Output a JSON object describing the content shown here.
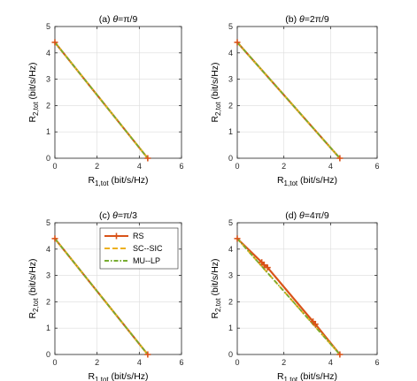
{
  "chart_data": [
    {
      "type": "line",
      "title_prefix": "(a) ",
      "title_theta": "θ",
      "title_suffix": "=π/9",
      "xlabel": {
        "main": "R",
        "sub": "1,tot",
        "rest": " (bit/s/Hz)"
      },
      "ylabel": {
        "main": "R",
        "sub": "2,tot",
        "rest": " (bit/s/Hz)"
      },
      "xlim": [
        0,
        6
      ],
      "ylim": [
        0,
        5
      ],
      "xticks": [
        "0",
        "2",
        "4",
        "6"
      ],
      "yticks": [
        "0",
        "1",
        "2",
        "3",
        "4",
        "5"
      ],
      "grid": true,
      "series": [
        {
          "name": "RS",
          "color": "#d95319",
          "style": "solid",
          "marker": "plus",
          "x": [
            0,
            4.4
          ],
          "y": [
            4.4,
            0
          ]
        },
        {
          "name": "SC--SIC",
          "color": "#edb120",
          "style": "dashed",
          "x": [
            0,
            4.4
          ],
          "y": [
            4.4,
            0
          ]
        },
        {
          "name": "MU--LP",
          "color": "#77ac30",
          "style": "dashdot",
          "x": [
            0,
            4.4
          ],
          "y": [
            4.4,
            0
          ]
        }
      ]
    },
    {
      "type": "line",
      "title_prefix": "(b) ",
      "title_theta": "θ",
      "title_suffix": "=2π/9",
      "xlabel": {
        "main": "R",
        "sub": "1,tot",
        "rest": " (bit/s/Hz)"
      },
      "ylabel": {
        "main": "R",
        "sub": "2,tot",
        "rest": " (bit/s/Hz)"
      },
      "xlim": [
        0,
        6
      ],
      "ylim": [
        0,
        5
      ],
      "xticks": [
        "0",
        "2",
        "4",
        "6"
      ],
      "yticks": [
        "0",
        "1",
        "2",
        "3",
        "4",
        "5"
      ],
      "grid": true,
      "series": [
        {
          "name": "RS",
          "color": "#d95319",
          "style": "solid",
          "marker": "plus",
          "x": [
            0,
            4.4
          ],
          "y": [
            4.4,
            0
          ]
        },
        {
          "name": "SC--SIC",
          "color": "#edb120",
          "style": "dashed",
          "x": [
            0,
            4.4
          ],
          "y": [
            4.4,
            0
          ]
        },
        {
          "name": "MU--LP",
          "color": "#77ac30",
          "style": "dashdot",
          "x": [
            0,
            4.4
          ],
          "y": [
            4.4,
            0
          ]
        }
      ]
    },
    {
      "type": "line",
      "title_prefix": "(c) ",
      "title_theta": "θ",
      "title_suffix": "=π/3",
      "xlabel": {
        "main": "R",
        "sub": "1,tot",
        "rest": " (bit/s/Hz)"
      },
      "ylabel": {
        "main": "R",
        "sub": "2,tot",
        "rest": " (bit/s/Hz)"
      },
      "xlim": [
        0,
        6
      ],
      "ylim": [
        0,
        5
      ],
      "xticks": [
        "0",
        "2",
        "4",
        "6"
      ],
      "yticks": [
        "0",
        "1",
        "2",
        "3",
        "4",
        "5"
      ],
      "grid": true,
      "legend": "top-right",
      "series": [
        {
          "name": "RS",
          "color": "#d95319",
          "style": "solid",
          "marker": "plus",
          "x": [
            0,
            4.4
          ],
          "y": [
            4.4,
            0
          ]
        },
        {
          "name": "SC--SIC",
          "color": "#edb120",
          "style": "dashed",
          "x": [
            0,
            4.4
          ],
          "y": [
            4.4,
            0
          ]
        },
        {
          "name": "MU--LP",
          "color": "#77ac30",
          "style": "dashdot",
          "x": [
            0,
            4.4
          ],
          "y": [
            4.4,
            0
          ]
        }
      ]
    },
    {
      "type": "line",
      "title_prefix": "(d) ",
      "title_theta": "θ",
      "title_suffix": "=4π/9",
      "xlabel": {
        "main": "R",
        "sub": "1,tot",
        "rest": " (bit/s/Hz)"
      },
      "ylabel": {
        "main": "R",
        "sub": "2,tot",
        "rest": " (bit/s/Hz)"
      },
      "xlim": [
        0,
        6
      ],
      "ylim": [
        0,
        5
      ],
      "xticks": [
        "0",
        "2",
        "4",
        "6"
      ],
      "yticks": [
        "0",
        "1",
        "2",
        "3",
        "4",
        "5"
      ],
      "grid": true,
      "series": [
        {
          "name": "RS",
          "color": "#d95319",
          "style": "solid",
          "marker": "plus",
          "x": [
            0,
            1.05,
            1.15,
            1.3,
            3.25,
            3.35,
            4.4
          ],
          "y": [
            4.4,
            3.5,
            3.4,
            3.3,
            1.25,
            1.15,
            0
          ]
        },
        {
          "name": "SC--SIC",
          "color": "#edb120",
          "style": "dashed",
          "x": [
            0,
            4.4
          ],
          "y": [
            4.4,
            0
          ]
        },
        {
          "name": "MU--LP",
          "color": "#77ac30",
          "style": "dashdot",
          "x": [
            0,
            4.4
          ],
          "y": [
            4.4,
            0
          ]
        }
      ]
    }
  ]
}
